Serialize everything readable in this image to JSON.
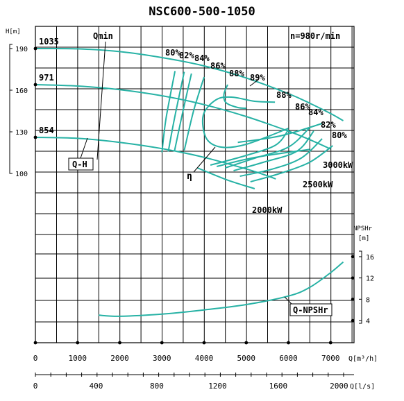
{
  "chart_data": {
    "type": "line",
    "title": "NSC600-500-1050",
    "speed_label": "n=980r/min",
    "x_axis_m3h": {
      "unit": "Q[m³/h]",
      "ticks": [
        "0",
        "1000",
        "2000",
        "3000",
        "4000",
        "5000",
        "6000",
        "7000"
      ],
      "range": [
        0,
        7200
      ]
    },
    "x_axis_ls": {
      "unit": "Q[l/s]",
      "ticks": [
        "0",
        "400",
        "800",
        "1200",
        "1600",
        "2000"
      ]
    },
    "y_axis_head": {
      "unit": "H[m]",
      "ticks": [
        "100",
        "130",
        "160",
        "190"
      ]
    },
    "y_axis_npsh": {
      "unit": "NPSHr\n[m]",
      "ticks": [
        "4",
        "8",
        "12",
        "16"
      ]
    },
    "impeller_diameters": [
      "1035",
      "971",
      "854"
    ],
    "qh_curves": [
      {
        "name": "1035",
        "points": [
          [
            0,
            190
          ],
          [
            1000,
            189.8
          ],
          [
            2000,
            187.8
          ],
          [
            3000,
            183.5
          ],
          [
            4000,
            177.5
          ],
          [
            5000,
            168.8
          ],
          [
            6000,
            157.5
          ],
          [
            6500,
            150.7
          ],
          [
            7000,
            143.2
          ],
          [
            7300,
            138
          ]
        ]
      },
      {
        "name": "971",
        "points": [
          [
            0,
            164
          ],
          [
            1000,
            163
          ],
          [
            2000,
            160.4
          ],
          [
            3000,
            156
          ],
          [
            4000,
            149.6
          ],
          [
            5000,
            141
          ],
          [
            6000,
            130.5
          ],
          [
            6500,
            124.4
          ],
          [
            7000,
            117.6
          ]
        ]
      },
      {
        "name": "854",
        "points": [
          [
            0,
            126
          ],
          [
            1000,
            125.3
          ],
          [
            2000,
            122.4
          ],
          [
            3000,
            117.9
          ],
          [
            4000,
            111.6
          ],
          [
            5000,
            103.2
          ],
          [
            5500,
            98.3
          ],
          [
            5700,
            96
          ]
        ]
      }
    ],
    "efficiency_labels": [
      "80%",
      "82%",
      "84%",
      "86%",
      "88%",
      "89%",
      "88%",
      "86%",
      "84%",
      "82%",
      "80%"
    ],
    "efficiency_left_lines": [
      {
        "label": "80%",
        "points": [
          [
            3000,
            115.2
          ],
          [
            3100,
            140
          ],
          [
            3310,
            173.8
          ]
        ]
      },
      {
        "label": "82%",
        "points": [
          [
            3150,
            115.7
          ],
          [
            3300,
            140
          ],
          [
            3530,
            173.2
          ]
        ]
      },
      {
        "label": "84%",
        "points": [
          [
            3300,
            116.5
          ],
          [
            3500,
            145
          ],
          [
            3700,
            172
          ]
        ]
      },
      {
        "label": "86%",
        "points": [
          [
            3530,
            116.6
          ],
          [
            3750,
            145
          ],
          [
            4000,
            169.5
          ]
        ]
      }
    ],
    "efficiency_right_lines": [
      {
        "label": "88%",
        "points": [
          [
            4150,
            106
          ],
          [
            5000,
            113
          ],
          [
            5700,
            120.5
          ],
          [
            6000,
            131.5
          ]
        ]
      },
      {
        "label": "86%",
        "points": [
          [
            4500,
            104
          ],
          [
            5200,
            111
          ],
          [
            6000,
            119
          ],
          [
            6500,
            132.8
          ]
        ]
      },
      {
        "label": "84%",
        "points": [
          [
            4700,
            102
          ],
          [
            5400,
            108
          ],
          [
            6200,
            116
          ],
          [
            6600,
            130.5
          ]
        ]
      },
      {
        "label": "82%",
        "points": [
          [
            4850,
            98
          ],
          [
            5600,
            103
          ],
          [
            6300,
            111
          ],
          [
            6800,
            125
          ]
        ]
      },
      {
        "label": "80%",
        "points": [
          [
            5100,
            94
          ],
          [
            5800,
            100
          ],
          [
            6500,
            108
          ],
          [
            7050,
            120
          ]
        ]
      }
    ],
    "efficiency_loops": [
      {
        "label": "88%",
        "points": [
          [
            5680,
            151.4
          ],
          [
            5200,
            152
          ],
          [
            4650,
            155
          ],
          [
            4280,
            153
          ],
          [
            3980,
            142
          ],
          [
            4050,
            125.5
          ],
          [
            4400,
            119
          ],
          [
            5000,
            121
          ],
          [
            6000,
            132.5
          ]
        ]
      },
      {
        "label": "89%",
        "points": [
          [
            4560,
            164
          ],
          [
            4470,
            157
          ],
          [
            4520,
            151
          ],
          [
            4800,
            147.5
          ],
          [
            5000,
            147
          ]
        ]
      }
    ],
    "power_lines": [
      {
        "label": "2000kW",
        "points": [
          [
            3840,
            104
          ],
          [
            4550,
            95.3
          ],
          [
            5200,
            89
          ]
        ]
      },
      {
        "label": "2500kW",
        "points": [
          [
            4300,
            105
          ],
          [
            5200,
            111.5
          ],
          [
            6500,
            117.3
          ]
        ]
      },
      {
        "label": "3000kW",
        "points": [
          [
            4800,
            122.4
          ],
          [
            5800,
            127
          ],
          [
            6800,
            136
          ]
        ]
      }
    ],
    "npshr_curve": {
      "name": "Q-NPSHr",
      "points": [
        [
          1500,
          5
        ],
        [
          2000,
          4.8
        ],
        [
          3000,
          5.2
        ],
        [
          4000,
          6
        ],
        [
          5000,
          7
        ],
        [
          6000,
          8.6
        ],
        [
          6500,
          10.2
        ],
        [
          7000,
          13
        ],
        [
          7300,
          15
        ]
      ]
    },
    "curve_labels": {
      "qmin": "Qmin",
      "qh": "Q-H",
      "eta": "η",
      "npsh": "Q-NPSHr"
    },
    "power_labels": [
      "2000kW",
      "2500kW",
      "3000kW"
    ],
    "colors": {
      "curve": "#27b2a5",
      "grid": "#000000"
    },
    "grid": true
  }
}
